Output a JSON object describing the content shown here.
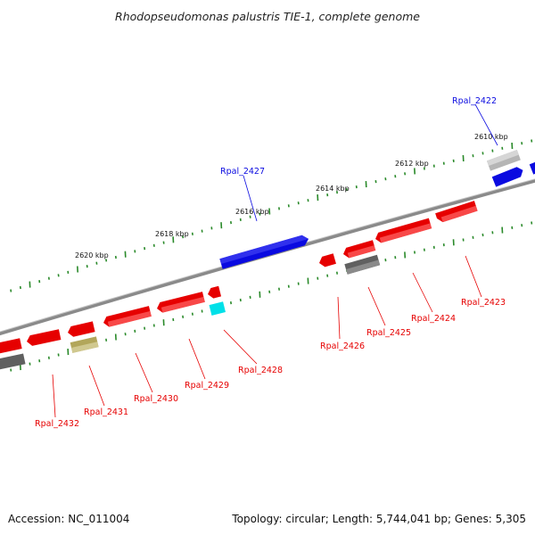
{
  "title": "Rhodopseudomonas palustris TIE-1, complete genome",
  "ticks": [
    "2610 kbp",
    "2612 kbp",
    "2614 kbp",
    "2616 kbp",
    "2618 kbp",
    "2620 kbp"
  ],
  "genes_forward": [
    {
      "id": "Rpal_2422",
      "color": "#0a0ae0"
    },
    {
      "id": "Rpal_2427",
      "color": "#0a0ae0"
    }
  ],
  "genes_reverse": [
    {
      "id": "Rpal_2423",
      "color": "#e60000"
    },
    {
      "id": "Rpal_2424",
      "color": "#e60000"
    },
    {
      "id": "Rpal_2425",
      "color": "#e60000"
    },
    {
      "id": "Rpal_2426",
      "color": "#e60000"
    },
    {
      "id": "Rpal_2428",
      "color": "#e60000"
    },
    {
      "id": "Rpal_2429",
      "color": "#e60000"
    },
    {
      "id": "Rpal_2430",
      "color": "#e60000"
    },
    {
      "id": "Rpal_2431",
      "color": "#e60000"
    },
    {
      "id": "Rpal_2432",
      "color": "#e60000"
    }
  ],
  "colors": {
    "forward": "#0a0ae0",
    "reverse": "#e60000",
    "other_reverse": "#606060",
    "olive": "#b2a65a",
    "cyan": "#00e0e8",
    "grey_light": "#b0b0b0",
    "tick": "#2a8a2a",
    "backbone": "#8a8a8a"
  },
  "footer": {
    "accession": "Accession: NC_011004",
    "summary": "Topology: circular; Length: 5,744,041 bp; Genes: 5,305"
  }
}
